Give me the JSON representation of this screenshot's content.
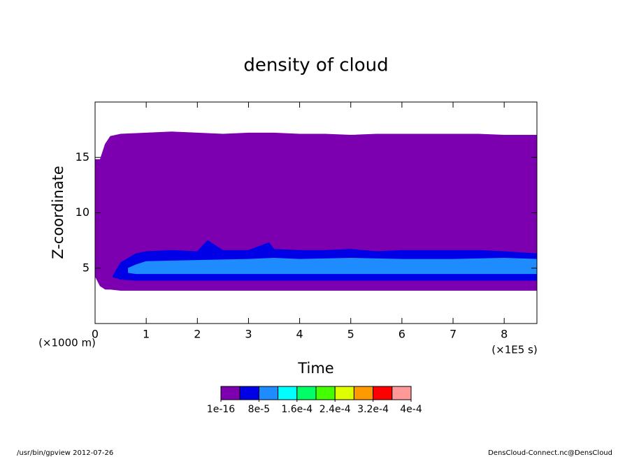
{
  "chart_data": {
    "type": "contour",
    "title": "density of cloud",
    "xlabel": "Time",
    "ylabel": "Z-coordinate",
    "xunit": "(×1E5 s)",
    "yunit": "(×1000 m)",
    "xlim": [
      0,
      8.64
    ],
    "ylim": [
      0,
      20
    ],
    "xticks": [
      0,
      1,
      2,
      3,
      4,
      5,
      6,
      7,
      8
    ],
    "yticks": [
      5,
      10,
      15
    ],
    "grid": false,
    "regions": [
      {
        "color": "#7d00b0",
        "x": [
          0,
          0.1,
          0.2,
          0.3,
          0.5,
          1,
          1.5,
          2,
          2.5,
          3,
          3.5,
          4,
          4.5,
          5,
          5.5,
          6,
          6.5,
          7,
          7.5,
          8,
          8.64
        ],
        "upper": [
          14.8,
          14.8,
          16.2,
          16.9,
          17.1,
          17.2,
          17.3,
          17.2,
          17.1,
          17.2,
          17.2,
          17.1,
          17.1,
          17.0,
          17.1,
          17.1,
          17.1,
          17.1,
          17.1,
          17.0,
          17.0
        ],
        "lower": [
          4.3,
          3.4,
          3.1,
          3.1,
          3.0,
          3.0,
          3.0,
          3.0,
          3.0,
          3.0,
          3.0,
          3.0,
          3.0,
          3.0,
          3.0,
          3.0,
          3.0,
          3.0,
          3.0,
          3.0,
          3.0
        ]
      },
      {
        "color": "#0000e6",
        "x": [
          0.35,
          0.5,
          0.8,
          1,
          1.5,
          2,
          2.2,
          2.5,
          3,
          3.4,
          3.5,
          4,
          4.5,
          5,
          5.5,
          6,
          6.5,
          7,
          7.5,
          8,
          8.64
        ],
        "upper": [
          4.3,
          5.5,
          6.3,
          6.5,
          6.6,
          6.5,
          7.5,
          6.6,
          6.6,
          7.3,
          6.7,
          6.6,
          6.6,
          6.7,
          6.5,
          6.6,
          6.6,
          6.6,
          6.6,
          6.5,
          6.3
        ],
        "lower": [
          4.2,
          4.0,
          3.9,
          3.9,
          3.9,
          3.9,
          3.9,
          3.9,
          3.9,
          3.9,
          3.9,
          3.9,
          3.9,
          3.9,
          3.9,
          3.9,
          3.9,
          3.9,
          3.9,
          3.9,
          3.9
        ]
      },
      {
        "color": "#1e8cff",
        "x": [
          0.65,
          0.8,
          1,
          2,
          3,
          3.5,
          4,
          5,
          6,
          7,
          8,
          8.64
        ],
        "upper": [
          5.0,
          5.3,
          5.6,
          5.7,
          5.8,
          5.9,
          5.8,
          5.9,
          5.8,
          5.8,
          5.9,
          5.8
        ],
        "lower": [
          4.6,
          4.5,
          4.5,
          4.5,
          4.5,
          4.5,
          4.5,
          4.5,
          4.5,
          4.5,
          4.5,
          4.5
        ]
      }
    ],
    "colorbar": {
      "colors": [
        "#7d00b0",
        "#0000e6",
        "#1e8cff",
        "#00ffff",
        "#00ff66",
        "#44ff00",
        "#ddff00",
        "#ff9900",
        "#ff0000",
        "#ff9999"
      ],
      "ticks": [
        {
          "value": 1e-16,
          "label": "1e-16"
        },
        {
          "value": 8e-05,
          "label": "8e-5"
        },
        {
          "value": 0.00016,
          "label": "1.6e-4"
        },
        {
          "value": 0.00024,
          "label": "2.4e-4"
        },
        {
          "value": 0.00032,
          "label": "3.2e-4"
        },
        {
          "value": 0.0004,
          "label": "4e-4"
        }
      ]
    },
    "footer_left": "/usr/bin/gpview  2012-07-26",
    "footer_right": "DensCloud-Connect.nc@DensCloud"
  }
}
